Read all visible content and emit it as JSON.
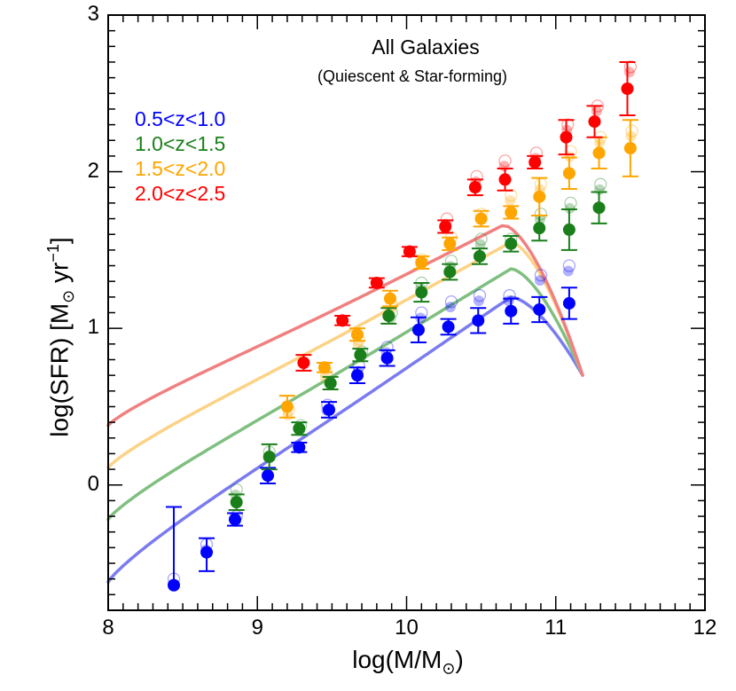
{
  "chart_data": {
    "type": "scatter",
    "title": "All Galaxies",
    "subtitle": "(Quiescent & Star-forming)",
    "xlabel_main": "log(M/M",
    "xlabel_sub": "⊙",
    "xlabel_end": ")",
    "ylabel_main": "log(SFR) [M",
    "ylabel_sub": "⊙",
    "ylabel_mid": " yr",
    "ylabel_sup": "−1",
    "ylabel_end": "]",
    "xlim": [
      8,
      12
    ],
    "ylim": [
      -0.8,
      3
    ],
    "xticks": [
      "8",
      "9",
      "10",
      "11",
      "12"
    ],
    "yticks": [
      "0",
      "1",
      "2",
      "3"
    ],
    "series": [
      {
        "name": "0.5<z<1.0",
        "color": "#0000ff",
        "line_color": "#7b7bf0",
        "curve": {
          "a": -0.62,
          "m0": 8.0,
          "s": 0.72,
          "peak_x": 10.7,
          "peak_y": 1.2
        },
        "points": [
          {
            "x": 8.44,
            "y": -0.64,
            "err_up": 0.5,
            "err_dn": 0.0
          },
          {
            "x": 8.66,
            "y": -0.43,
            "err_up": 0.09,
            "err_dn": 0.12
          },
          {
            "x": 8.85,
            "y": -0.22,
            "err_up": 0.04,
            "err_dn": 0.04
          },
          {
            "x": 9.07,
            "y": 0.06,
            "err_up": 0.05,
            "err_dn": 0.05
          },
          {
            "x": 9.28,
            "y": 0.24,
            "err_up": 0.03,
            "err_dn": 0.03
          },
          {
            "x": 9.48,
            "y": 0.48,
            "err_up": 0.05,
            "err_dn": 0.05
          },
          {
            "x": 9.67,
            "y": 0.7,
            "err_up": 0.05,
            "err_dn": 0.05
          },
          {
            "x": 9.87,
            "y": 0.81,
            "err_up": 0.05,
            "err_dn": 0.05
          },
          {
            "x": 10.08,
            "y": 0.99,
            "err_up": 0.08,
            "err_dn": 0.08
          },
          {
            "x": 10.28,
            "y": 1.01,
            "err_up": 0.05,
            "err_dn": 0.05
          },
          {
            "x": 10.48,
            "y": 1.05,
            "err_up": 0.08,
            "err_dn": 0.08
          },
          {
            "x": 10.7,
            "y": 1.11,
            "err_up": 0.08,
            "err_dn": 0.08
          },
          {
            "x": 10.89,
            "y": 1.12,
            "err_up": 0.08,
            "err_dn": 0.08
          },
          {
            "x": 11.09,
            "y": 1.16,
            "err_up": 0.1,
            "err_dn": 0.1
          }
        ],
        "open_points": [
          {
            "x": 8.44,
            "y": -0.6
          },
          {
            "x": 8.66,
            "y": -0.38
          },
          {
            "x": 8.86,
            "y": -0.2
          },
          {
            "x": 9.47,
            "y": 0.51
          },
          {
            "x": 9.68,
            "y": 0.76
          },
          {
            "x": 9.87,
            "y": 0.88
          },
          {
            "x": 10.1,
            "y": 1.1
          },
          {
            "x": 10.3,
            "y": 1.17
          },
          {
            "x": 10.49,
            "y": 1.21
          },
          {
            "x": 10.69,
            "y": 1.21
          },
          {
            "x": 10.9,
            "y": 1.34
          },
          {
            "x": 11.09,
            "y": 1.4
          }
        ]
      },
      {
        "name": "1.0<z<1.5",
        "color": "#1a7f1a",
        "line_color": "#7fbf7f",
        "curve": {
          "a": -0.22,
          "m0": 8.0,
          "s": 0.72,
          "peak_x": 10.7,
          "peak_y": 1.38
        },
        "points": [
          {
            "x": 8.86,
            "y": -0.11,
            "err_up": 0.05,
            "err_dn": 0.05
          },
          {
            "x": 9.08,
            "y": 0.18,
            "err_up": 0.08,
            "err_dn": 0.08
          },
          {
            "x": 9.28,
            "y": 0.36,
            "err_up": 0.04,
            "err_dn": 0.04
          },
          {
            "x": 9.49,
            "y": 0.65,
            "err_up": 0.04,
            "err_dn": 0.04
          },
          {
            "x": 9.69,
            "y": 0.83,
            "err_up": 0.04,
            "err_dn": 0.04
          },
          {
            "x": 9.88,
            "y": 1.08,
            "err_up": 0.05,
            "err_dn": 0.05
          },
          {
            "x": 10.1,
            "y": 1.23,
            "err_up": 0.06,
            "err_dn": 0.06
          },
          {
            "x": 10.29,
            "y": 1.36,
            "err_up": 0.05,
            "err_dn": 0.05
          },
          {
            "x": 10.49,
            "y": 1.46,
            "err_up": 0.05,
            "err_dn": 0.05
          },
          {
            "x": 10.7,
            "y": 1.54,
            "err_up": 0.05,
            "err_dn": 0.05
          },
          {
            "x": 10.89,
            "y": 1.64,
            "err_up": 0.08,
            "err_dn": 0.08
          },
          {
            "x": 11.09,
            "y": 1.63,
            "err_up": 0.13,
            "err_dn": 0.13
          },
          {
            "x": 11.29,
            "y": 1.77,
            "err_up": 0.1,
            "err_dn": 0.1
          }
        ],
        "open_points": [
          {
            "x": 8.86,
            "y": -0.03
          },
          {
            "x": 9.08,
            "y": 0.21
          },
          {
            "x": 9.29,
            "y": 0.38
          },
          {
            "x": 9.7,
            "y": 0.85
          },
          {
            "x": 9.9,
            "y": 1.1
          },
          {
            "x": 10.1,
            "y": 1.29
          },
          {
            "x": 10.3,
            "y": 1.43
          },
          {
            "x": 10.5,
            "y": 1.57
          },
          {
            "x": 10.7,
            "y": 1.57
          },
          {
            "x": 10.9,
            "y": 1.73
          },
          {
            "x": 11.1,
            "y": 1.8
          },
          {
            "x": 11.3,
            "y": 1.92
          }
        ]
      },
      {
        "name": "1.5<z<2.0",
        "color": "#ffa500",
        "line_color": "#fcd285",
        "curve": {
          "a": 0.11,
          "m0": 8.0,
          "s": 0.72,
          "peak_x": 10.7,
          "peak_y": 1.55
        },
        "points": [
          {
            "x": 9.2,
            "y": 0.5,
            "err_up": 0.07,
            "err_dn": 0.07
          },
          {
            "x": 9.45,
            "y": 0.75,
            "err_up": 0.03,
            "err_dn": 0.03
          },
          {
            "x": 9.67,
            "y": 0.96,
            "err_up": 0.04,
            "err_dn": 0.04
          },
          {
            "x": 9.89,
            "y": 1.19,
            "err_up": 0.05,
            "err_dn": 0.05
          },
          {
            "x": 10.1,
            "y": 1.42,
            "err_up": 0.04,
            "err_dn": 0.04
          },
          {
            "x": 10.29,
            "y": 1.54,
            "err_up": 0.04,
            "err_dn": 0.04
          },
          {
            "x": 10.5,
            "y": 1.7,
            "err_up": 0.05,
            "err_dn": 0.05
          },
          {
            "x": 10.7,
            "y": 1.74,
            "err_up": 0.04,
            "err_dn": 0.04
          },
          {
            "x": 10.89,
            "y": 1.84,
            "err_up": 0.12,
            "err_dn": 0.12
          },
          {
            "x": 11.09,
            "y": 1.99,
            "err_up": 0.1,
            "err_dn": 0.1
          },
          {
            "x": 11.29,
            "y": 2.12,
            "err_up": 0.1,
            "err_dn": 0.1
          },
          {
            "x": 11.5,
            "y": 2.15,
            "err_up": 0.18,
            "err_dn": 0.18
          }
        ],
        "open_points": [
          {
            "x": 9.21,
            "y": 0.48
          },
          {
            "x": 9.46,
            "y": 0.72
          },
          {
            "x": 9.68,
            "y": 0.93
          },
          {
            "x": 9.9,
            "y": 1.15
          },
          {
            "x": 10.1,
            "y": 1.44
          },
          {
            "x": 10.3,
            "y": 1.58
          },
          {
            "x": 10.5,
            "y": 1.73
          },
          {
            "x": 10.7,
            "y": 1.85
          },
          {
            "x": 10.9,
            "y": 1.92
          },
          {
            "x": 11.1,
            "y": 2.13
          },
          {
            "x": 11.3,
            "y": 2.22
          },
          {
            "x": 11.51,
            "y": 2.26
          }
        ]
      },
      {
        "name": "2.0<z<2.5",
        "color": "#ff0000",
        "line_color": "#f08080",
        "curve": {
          "a": 0.38,
          "m0": 8.0,
          "s": 0.72,
          "peak_x": 10.65,
          "peak_y": 1.66
        },
        "points": [
          {
            "x": 9.31,
            "y": 0.78,
            "err_up": 0.05,
            "err_dn": 0.05
          },
          {
            "x": 9.57,
            "y": 1.05,
            "err_up": 0.03,
            "err_dn": 0.03
          },
          {
            "x": 9.8,
            "y": 1.29,
            "err_up": 0.03,
            "err_dn": 0.03
          },
          {
            "x": 10.02,
            "y": 1.49,
            "err_up": 0.03,
            "err_dn": 0.03
          },
          {
            "x": 10.26,
            "y": 1.65,
            "err_up": 0.04,
            "err_dn": 0.04
          },
          {
            "x": 10.46,
            "y": 1.9,
            "err_up": 0.05,
            "err_dn": 0.05
          },
          {
            "x": 10.66,
            "y": 1.95,
            "err_up": 0.07,
            "err_dn": 0.07
          },
          {
            "x": 10.86,
            "y": 2.06,
            "err_up": 0.04,
            "err_dn": 0.04
          },
          {
            "x": 11.07,
            "y": 2.22,
            "err_up": 0.11,
            "err_dn": 0.11
          },
          {
            "x": 11.26,
            "y": 2.32,
            "err_up": 0.1,
            "err_dn": 0.1
          },
          {
            "x": 11.48,
            "y": 2.53,
            "err_up": 0.17,
            "err_dn": 0.17
          }
        ],
        "open_points": [
          {
            "x": 10.27,
            "y": 1.7
          },
          {
            "x": 10.47,
            "y": 1.97
          },
          {
            "x": 10.66,
            "y": 2.07
          },
          {
            "x": 10.87,
            "y": 2.12
          },
          {
            "x": 11.08,
            "y": 2.3
          },
          {
            "x": 11.28,
            "y": 2.42
          },
          {
            "x": 11.5,
            "y": 2.67
          }
        ]
      }
    ]
  }
}
